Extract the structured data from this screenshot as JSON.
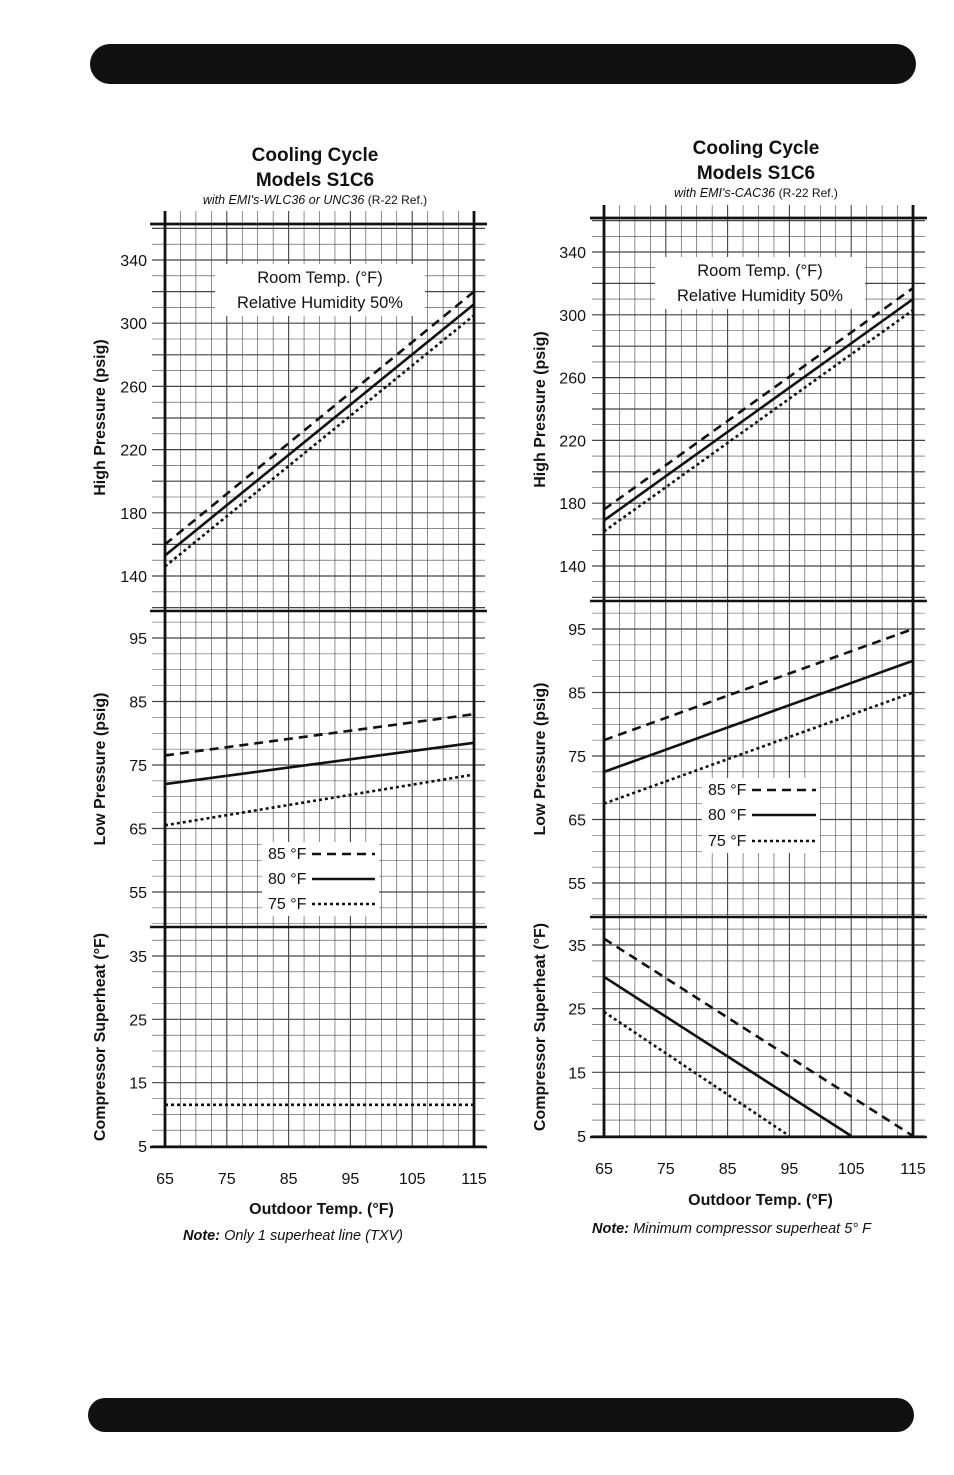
{
  "page": {
    "top_bar": "",
    "bottom_bar": ""
  },
  "legend": {
    "entries": [
      {
        "label": "85 °F",
        "dash": "dashed"
      },
      {
        "label": "80 °F",
        "dash": "solid"
      },
      {
        "label": "75 °F",
        "dash": "dotted"
      }
    ]
  },
  "chart_data": [
    {
      "type": "line",
      "title_line1": "Cooling Cycle",
      "title_line2": "Models S1C6",
      "subtitle_main": "with EMI's-WLC36 or UNC36",
      "subtitle_ref": "(R-22 Ref.)",
      "xlabel": "Outdoor Temp. (°F)",
      "x_ticks": [
        "65",
        "75",
        "85",
        "95",
        "105",
        "115"
      ],
      "xlim": [
        65,
        115
      ],
      "note_bold": "Note:",
      "note_text": "Only 1 superheat line (TXV)",
      "room_temp_label": "Room Temp. (°F)",
      "humidity_label": "Relative Humidity 50%",
      "panels": [
        {
          "ylabel": "High Pressure (psig)",
          "ylim": [
            128,
            362
          ],
          "y_ticks": [
            "340",
            "300",
            "260",
            "220",
            "180",
            "140"
          ],
          "series": [
            {
              "name": "85 °F",
              "x": [
                65,
                115
              ],
              "y": [
                160,
                320
              ]
            },
            {
              "name": "80 °F",
              "x": [
                65,
                115
              ],
              "y": [
                153,
                312
              ]
            },
            {
              "name": "75 °F",
              "x": [
                65,
                115
              ],
              "y": [
                146,
                305
              ]
            }
          ]
        },
        {
          "ylabel": "Low Pressure (psig)",
          "ylim": [
            47,
            100
          ],
          "y_ticks": [
            "95",
            "85",
            "75",
            "65",
            "55"
          ],
          "series": [
            {
              "name": "85 °F",
              "x": [
                65,
                115
              ],
              "y": [
                76.5,
                83
              ]
            },
            {
              "name": "80 °F",
              "x": [
                65,
                115
              ],
              "y": [
                72,
                78.5
              ]
            },
            {
              "name": "75 °F",
              "x": [
                65,
                115
              ],
              "y": [
                65.5,
                73.5
              ]
            }
          ]
        },
        {
          "ylabel": "Compressor Superheat (°F)",
          "ylim": [
            5,
            40
          ],
          "y_ticks": [
            "35",
            "25",
            "15",
            "5"
          ],
          "series": [
            {
              "name": "superheat",
              "x": [
                65,
                115
              ],
              "y": [
                11.5,
                11.5
              ]
            }
          ]
        }
      ]
    },
    {
      "type": "line",
      "title_line1": "Cooling Cycle",
      "title_line2": "Models S1C6",
      "subtitle_main": "with EMI's-CAC36",
      "subtitle_ref": "(R-22 Ref.)",
      "xlabel": "Outdoor Temp. (°F)",
      "x_ticks": [
        "65",
        "75",
        "85",
        "95",
        "105",
        "115"
      ],
      "xlim": [
        65,
        115
      ],
      "note_bold": "Note:",
      "note_text": "Minimum compressor superheat  5° F",
      "room_temp_label": "Room Temp. (°F)",
      "humidity_label": "Relative Humidity 50%",
      "panels": [
        {
          "ylabel": "High Pressure (psig)",
          "ylim": [
            120,
            362
          ],
          "y_ticks": [
            "340",
            "300",
            "260",
            "220",
            "180",
            "140"
          ],
          "series": [
            {
              "name": "85 °F",
              "x": [
                65,
                115
              ],
              "y": [
                176,
                317
              ]
            },
            {
              "name": "80 °F",
              "x": [
                65,
                115
              ],
              "y": [
                169,
                310
              ]
            },
            {
              "name": "75 °F",
              "x": [
                65,
                115
              ],
              "y": [
                162,
                303
              ]
            }
          ]
        },
        {
          "ylabel": "Low Pressure (psig)",
          "ylim": [
            47,
            100
          ],
          "y_ticks": [
            "95",
            "85",
            "75",
            "65",
            "55"
          ],
          "series": [
            {
              "name": "85 °F",
              "x": [
                65,
                115
              ],
              "y": [
                77.5,
                95
              ]
            },
            {
              "name": "80 °F",
              "x": [
                65,
                115
              ],
              "y": [
                72.5,
                90
              ]
            },
            {
              "name": "75 °F",
              "x": [
                65,
                115
              ],
              "y": [
                67.5,
                85
              ]
            }
          ]
        },
        {
          "ylabel": "Compressor Superheat (°F)",
          "ylim": [
            5,
            40
          ],
          "y_ticks": [
            "35",
            "25",
            "15",
            "5"
          ],
          "series": [
            {
              "name": "85 °F",
              "x": [
                65,
                115
              ],
              "y": [
                36,
                5
              ]
            },
            {
              "name": "80 °F",
              "x": [
                65,
                105
              ],
              "y": [
                30,
                5
              ]
            },
            {
              "name": "75 °F",
              "x": [
                65,
                95
              ],
              "y": [
                24.5,
                5
              ]
            }
          ]
        }
      ]
    }
  ]
}
